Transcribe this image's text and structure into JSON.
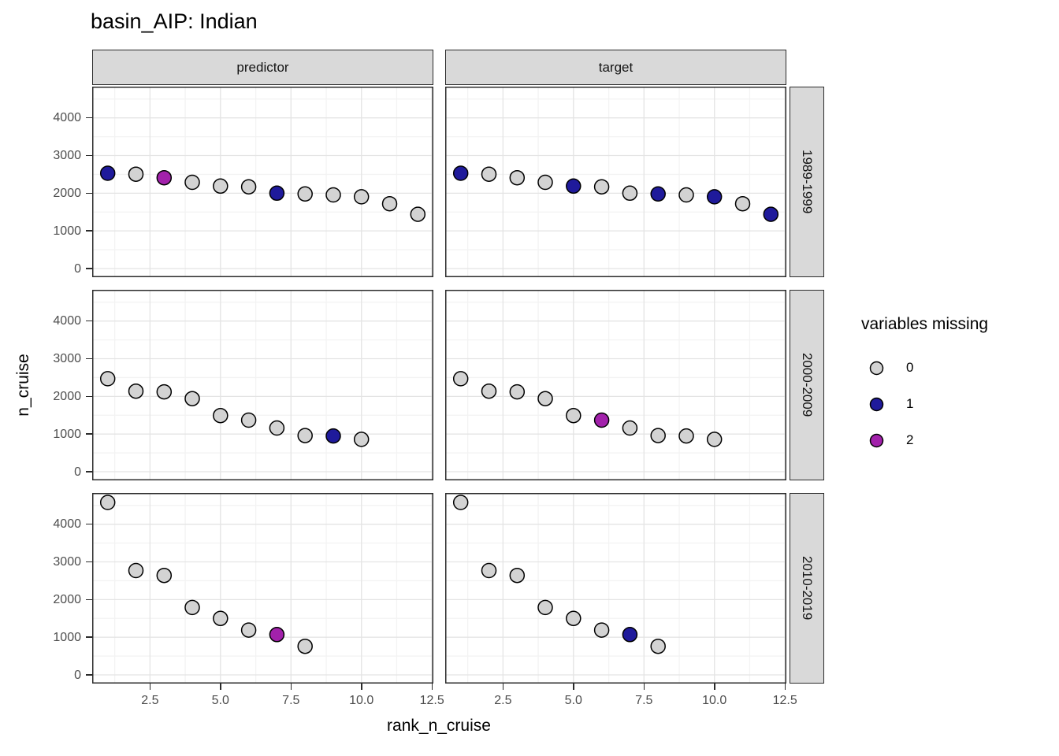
{
  "title": "basin_AIP: Indian",
  "colors": {
    "missing_0": "#d3d3d3",
    "missing_1": "#1f1a9b",
    "missing_2": "#a221ab",
    "point_stroke": "#000000",
    "grid_major": "#e4e4e4",
    "grid_minor": "#f3f3f3",
    "strip_fill": "#d9d9d9",
    "border": "#2b2b2b",
    "tick_label": "#4d4d4d",
    "panel_bg": "#ffffff"
  },
  "chart_data": {
    "type": "scatter",
    "title": "basin_AIP: Indian",
    "xlabel": "rank_n_cruise",
    "ylabel": "n_cruise",
    "col_facets": [
      "predictor",
      "target"
    ],
    "row_facets": [
      "1989-1999",
      "2000-2009",
      "2010-2019"
    ],
    "x_ticks": [
      {
        "label": "2.5",
        "value": 2.5
      },
      {
        "label": "5.0",
        "value": 5.0
      },
      {
        "label": "7.5",
        "value": 7.5
      },
      {
        "label": "10.0",
        "value": 10.0
      },
      {
        "label": "12.5",
        "value": 12.5
      }
    ],
    "y_ticks": [
      {
        "label": "0",
        "value": 0
      },
      {
        "label": "1000",
        "value": 1000
      },
      {
        "label": "2000",
        "value": 2000
      },
      {
        "label": "3000",
        "value": 3000
      },
      {
        "label": "4000",
        "value": 4000
      }
    ],
    "x_minor": [
      1.25,
      3.75,
      6.25,
      8.75,
      11.25
    ],
    "y_minor": [
      500,
      1500,
      2500,
      3500,
      4500
    ],
    "x_range": [
      0.45,
      12.55
    ],
    "y_range": [
      -230,
      4830
    ],
    "grid": true,
    "legend_position": "right",
    "legend": {
      "title": "variables missing",
      "items": [
        {
          "label": "0",
          "missing": 0
        },
        {
          "label": "1",
          "missing": 1
        },
        {
          "label": "2",
          "missing": 2
        }
      ]
    },
    "facets": [
      {
        "row": "1989-1999",
        "col": "predictor",
        "points": [
          {
            "x": 1,
            "y": 2530,
            "m": 1
          },
          {
            "x": 2,
            "y": 2505,
            "m": 0
          },
          {
            "x": 3,
            "y": 2410,
            "m": 2
          },
          {
            "x": 4,
            "y": 2290,
            "m": 0
          },
          {
            "x": 5,
            "y": 2190,
            "m": 0
          },
          {
            "x": 6,
            "y": 2170,
            "m": 0
          },
          {
            "x": 7,
            "y": 2000,
            "m": 1
          },
          {
            "x": 8,
            "y": 1980,
            "m": 0
          },
          {
            "x": 9,
            "y": 1955,
            "m": 0
          },
          {
            "x": 10,
            "y": 1905,
            "m": 0
          },
          {
            "x": 11,
            "y": 1720,
            "m": 0
          },
          {
            "x": 12,
            "y": 1440,
            "m": 0
          }
        ]
      },
      {
        "row": "1989-1999",
        "col": "target",
        "points": [
          {
            "x": 1,
            "y": 2530,
            "m": 1
          },
          {
            "x": 2,
            "y": 2505,
            "m": 0
          },
          {
            "x": 3,
            "y": 2410,
            "m": 0
          },
          {
            "x": 4,
            "y": 2290,
            "m": 0
          },
          {
            "x": 5,
            "y": 2190,
            "m": 1
          },
          {
            "x": 6,
            "y": 2170,
            "m": 0
          },
          {
            "x": 7,
            "y": 2000,
            "m": 0
          },
          {
            "x": 8,
            "y": 1980,
            "m": 1
          },
          {
            "x": 9,
            "y": 1955,
            "m": 0
          },
          {
            "x": 10,
            "y": 1905,
            "m": 1
          },
          {
            "x": 11,
            "y": 1720,
            "m": 0
          },
          {
            "x": 12,
            "y": 1440,
            "m": 1
          }
        ]
      },
      {
        "row": "2000-2009",
        "col": "predictor",
        "points": [
          {
            "x": 1,
            "y": 2470,
            "m": 0
          },
          {
            "x": 2,
            "y": 2140,
            "m": 0
          },
          {
            "x": 3,
            "y": 2120,
            "m": 0
          },
          {
            "x": 4,
            "y": 1940,
            "m": 0
          },
          {
            "x": 5,
            "y": 1490,
            "m": 0
          },
          {
            "x": 6,
            "y": 1370,
            "m": 0
          },
          {
            "x": 7,
            "y": 1160,
            "m": 0
          },
          {
            "x": 8,
            "y": 960,
            "m": 0
          },
          {
            "x": 9,
            "y": 950,
            "m": 1
          },
          {
            "x": 10,
            "y": 860,
            "m": 0
          }
        ]
      },
      {
        "row": "2000-2009",
        "col": "target",
        "points": [
          {
            "x": 1,
            "y": 2470,
            "m": 0
          },
          {
            "x": 2,
            "y": 2140,
            "m": 0
          },
          {
            "x": 3,
            "y": 2120,
            "m": 0
          },
          {
            "x": 4,
            "y": 1940,
            "m": 0
          },
          {
            "x": 5,
            "y": 1490,
            "m": 0
          },
          {
            "x": 6,
            "y": 1370,
            "m": 2
          },
          {
            "x": 7,
            "y": 1160,
            "m": 0
          },
          {
            "x": 8,
            "y": 960,
            "m": 0
          },
          {
            "x": 9,
            "y": 950,
            "m": 0
          },
          {
            "x": 10,
            "y": 860,
            "m": 0
          }
        ]
      },
      {
        "row": "2010-2019",
        "col": "predictor",
        "points": [
          {
            "x": 1,
            "y": 4580,
            "m": 0
          },
          {
            "x": 2,
            "y": 2770,
            "m": 0
          },
          {
            "x": 3,
            "y": 2640,
            "m": 0
          },
          {
            "x": 4,
            "y": 1790,
            "m": 0
          },
          {
            "x": 5,
            "y": 1500,
            "m": 0
          },
          {
            "x": 6,
            "y": 1190,
            "m": 0
          },
          {
            "x": 7,
            "y": 1070,
            "m": 2
          },
          {
            "x": 8,
            "y": 760,
            "m": 0
          }
        ]
      },
      {
        "row": "2010-2019",
        "col": "target",
        "points": [
          {
            "x": 1,
            "y": 4580,
            "m": 0
          },
          {
            "x": 2,
            "y": 2770,
            "m": 0
          },
          {
            "x": 3,
            "y": 2640,
            "m": 0
          },
          {
            "x": 4,
            "y": 1790,
            "m": 0
          },
          {
            "x": 5,
            "y": 1500,
            "m": 0
          },
          {
            "x": 6,
            "y": 1190,
            "m": 0
          },
          {
            "x": 7,
            "y": 1070,
            "m": 1
          },
          {
            "x": 8,
            "y": 760,
            "m": 0
          }
        ]
      }
    ]
  }
}
